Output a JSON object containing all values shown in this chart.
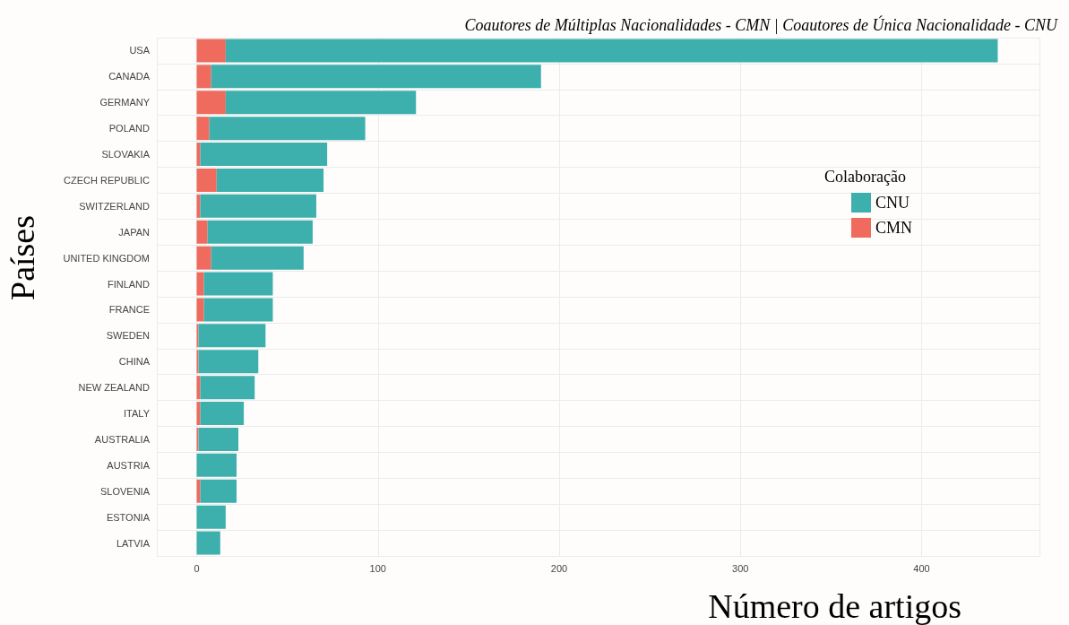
{
  "chart_data": {
    "type": "bar",
    "orientation": "horizontal",
    "stacked": true,
    "title": "Coautores de Múltiplas Nacionalidades - CMN | Coautores de Única Nacionalidade - CNU",
    "xlabel": "Número de artigos",
    "ylabel": "Países",
    "legend_title": "Colaboração",
    "categories": [
      "USA",
      "CANADA",
      "GERMANY",
      "POLAND",
      "SLOVAKIA",
      "CZECH REPUBLIC",
      "SWITZERLAND",
      "JAPAN",
      "UNITED KINGDOM",
      "FINLAND",
      "FRANCE",
      "SWEDEN",
      "CHINA",
      "NEW ZEALAND",
      "ITALY",
      "AUSTRALIA",
      "AUSTRIA",
      "SLOVENIA",
      "ESTONIA",
      "LATVIA"
    ],
    "series": [
      {
        "name": "CMN",
        "color": "#ee6b5e",
        "values": [
          16,
          8,
          16,
          7,
          2,
          11,
          2,
          6,
          8,
          4,
          4,
          1,
          1,
          2,
          2,
          1,
          0,
          2,
          0,
          0
        ]
      },
      {
        "name": "CNU",
        "color": "#3db0ae",
        "values": [
          426,
          182,
          105,
          86,
          70,
          59,
          64,
          58,
          51,
          38,
          38,
          37,
          33,
          30,
          24,
          22,
          22,
          20,
          16,
          13
        ]
      }
    ],
    "xlim": [
      -22,
      465
    ],
    "xticks": [
      0,
      100,
      200,
      300,
      400
    ],
    "grid": true,
    "legend": "right"
  }
}
